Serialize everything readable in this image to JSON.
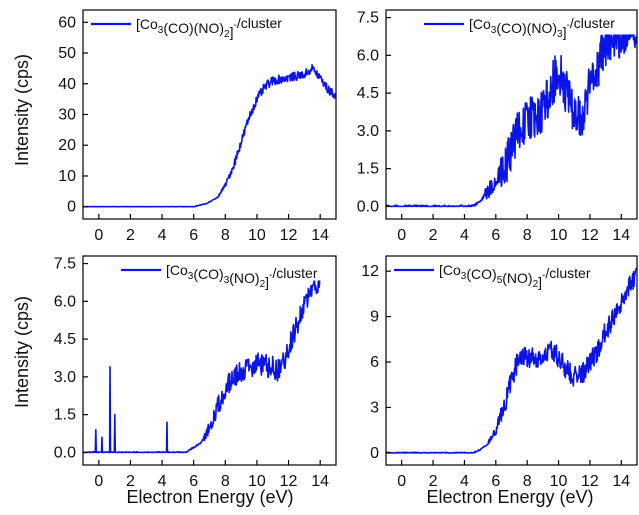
{
  "figure": {
    "x_axis_title": "Electron Energy (eV)",
    "y_axis_title": "Intensity (cps)"
  },
  "chart_data": [
    {
      "type": "line",
      "position": "top-left",
      "legend": {
        "prefix": "[Co",
        "parts": [
          [
            "3",
            "sub"
          ],
          [
            "(CO)(NO)",
            ""
          ],
          [
            "2",
            "sub"
          ],
          [
            "]",
            ""
          ],
          [
            "-",
            "sup"
          ],
          [
            "/cluster",
            ""
          ]
        ]
      },
      "legend_placement": "top-left",
      "xlim": [
        -1,
        15
      ],
      "ylim": [
        -4,
        64
      ],
      "xticks": [
        0,
        2,
        4,
        6,
        8,
        10,
        12,
        14
      ],
      "yticks": [
        0,
        10,
        20,
        30,
        40,
        50,
        60
      ],
      "ytick_labels": [
        "0",
        "10",
        "20",
        "30",
        "40",
        "50",
        "60"
      ],
      "noise": 1.4,
      "series": [
        {
          "color": "#0a14e6",
          "x": [
            -1,
            6.0,
            6.8,
            7.5,
            8.0,
            8.5,
            9.0,
            9.5,
            10.0,
            10.5,
            11.0,
            12.0,
            13.0,
            13.5,
            14.0,
            14.5,
            15.0
          ],
          "y": [
            0,
            0,
            1,
            3,
            7,
            13,
            21,
            29,
            35,
            39,
            41,
            42,
            43,
            45,
            42,
            38,
            36
          ]
        }
      ]
    },
    {
      "type": "line",
      "position": "top-right",
      "legend": {
        "prefix": "[Co",
        "parts": [
          [
            "3",
            "sub"
          ],
          [
            "(CO)(NO)",
            ""
          ],
          [
            "3",
            "sub"
          ],
          [
            "]",
            ""
          ],
          [
            "-",
            "sup"
          ],
          [
            "/cluster",
            ""
          ]
        ]
      },
      "legend_placement": "top-right",
      "xlim": [
        -1,
        15
      ],
      "ylim": [
        -0.5,
        7.8
      ],
      "xticks": [
        0,
        2,
        4,
        6,
        8,
        10,
        12,
        14
      ],
      "yticks": [
        0,
        1.5,
        3,
        4.5,
        6,
        7.5
      ],
      "ytick_labels": [
        "0.0",
        "1.5",
        "3.0",
        "4.5",
        "6.0",
        "7.5"
      ],
      "clip_max": 6.8,
      "noise": 0.9,
      "series": [
        {
          "color": "#0a14e6",
          "x": [
            -1,
            4.5,
            5.0,
            6.0,
            7.0,
            7.5,
            8.0,
            9.0,
            10.0,
            10.5,
            11.0,
            11.5,
            12.0,
            13.0,
            14.0,
            15.0
          ],
          "y": [
            0,
            0,
            0.2,
            1.0,
            2.2,
            3.2,
            3.4,
            3.8,
            5.5,
            4.5,
            3.8,
            3.3,
            4.8,
            6.4,
            6.8,
            6.8
          ]
        }
      ]
    },
    {
      "type": "line",
      "position": "bottom-left",
      "legend": {
        "prefix": "[Co",
        "parts": [
          [
            "3",
            "sub"
          ],
          [
            "(CO)",
            ""
          ],
          [
            "3",
            "sub"
          ],
          [
            "(NO)",
            ""
          ],
          [
            "2",
            "sub"
          ],
          [
            "]",
            ""
          ],
          [
            "-",
            "sup"
          ],
          [
            "/cluster",
            ""
          ]
        ]
      },
      "legend_placement": "top-right",
      "xlim": [
        -1,
        15
      ],
      "ylim": [
        -0.5,
        7.8
      ],
      "xticks": [
        0,
        2,
        4,
        6,
        8,
        10,
        12,
        14
      ],
      "yticks": [
        0,
        1.5,
        3,
        4.5,
        6,
        7.5
      ],
      "ytick_labels": [
        "0.0",
        "1.5",
        "3.0",
        "4.5",
        "6.0",
        "7.5"
      ],
      "clip_max": 6.8,
      "x_max_data": 14.0,
      "noise": 0.45,
      "spikes": [
        [
          -0.2,
          0.9
        ],
        [
          0.2,
          0.6
        ],
        [
          0.7,
          3.4
        ],
        [
          1.0,
          1.5
        ],
        [
          4.3,
          1.2
        ]
      ],
      "series": [
        {
          "color": "#0a14e6",
          "x": [
            -1,
            5.5,
            6.5,
            7.0,
            8.0,
            9.0,
            10.0,
            11.0,
            11.5,
            12.0,
            12.5,
            13.0,
            13.5,
            14.0
          ],
          "y": [
            0,
            0,
            0.4,
            1.0,
            2.6,
            3.2,
            3.5,
            3.4,
            3.2,
            4.2,
            5.0,
            5.8,
            6.5,
            6.8
          ]
        }
      ]
    },
    {
      "type": "line",
      "position": "bottom-right",
      "legend": {
        "prefix": "[Co",
        "parts": [
          [
            "3",
            "sub"
          ],
          [
            "(CO)",
            ""
          ],
          [
            "5",
            "sub"
          ],
          [
            "(NO)",
            ""
          ],
          [
            "2",
            "sub"
          ],
          [
            "]",
            ""
          ],
          [
            "-",
            "sup"
          ],
          [
            "/cluster",
            ""
          ]
        ]
      },
      "legend_placement": "top-left",
      "xlim": [
        -1,
        15
      ],
      "ylim": [
        -0.8,
        13
      ],
      "xticks": [
        0,
        2,
        4,
        6,
        8,
        10,
        12,
        14
      ],
      "yticks": [
        0,
        3,
        6,
        9,
        12
      ],
      "ytick_labels": [
        "0",
        "3",
        "6",
        "9",
        "12"
      ],
      "noise": 0.7,
      "series": [
        {
          "color": "#0a14e6",
          "x": [
            -1,
            4.5,
            5.0,
            5.5,
            6.0,
            6.5,
            7.0,
            7.5,
            8.0,
            8.5,
            9.0,
            9.5,
            10.0,
            10.5,
            11.0,
            11.5,
            12.0,
            12.5,
            13.0,
            14.0,
            15.0
          ],
          "y": [
            0,
            0,
            0.2,
            0.6,
            1.5,
            3.0,
            4.8,
            6.3,
            6.4,
            6.2,
            6.5,
            6.8,
            6.3,
            5.5,
            5.0,
            5.2,
            6.0,
            6.8,
            8.0,
            10.0,
            12.0
          ]
        }
      ]
    }
  ]
}
